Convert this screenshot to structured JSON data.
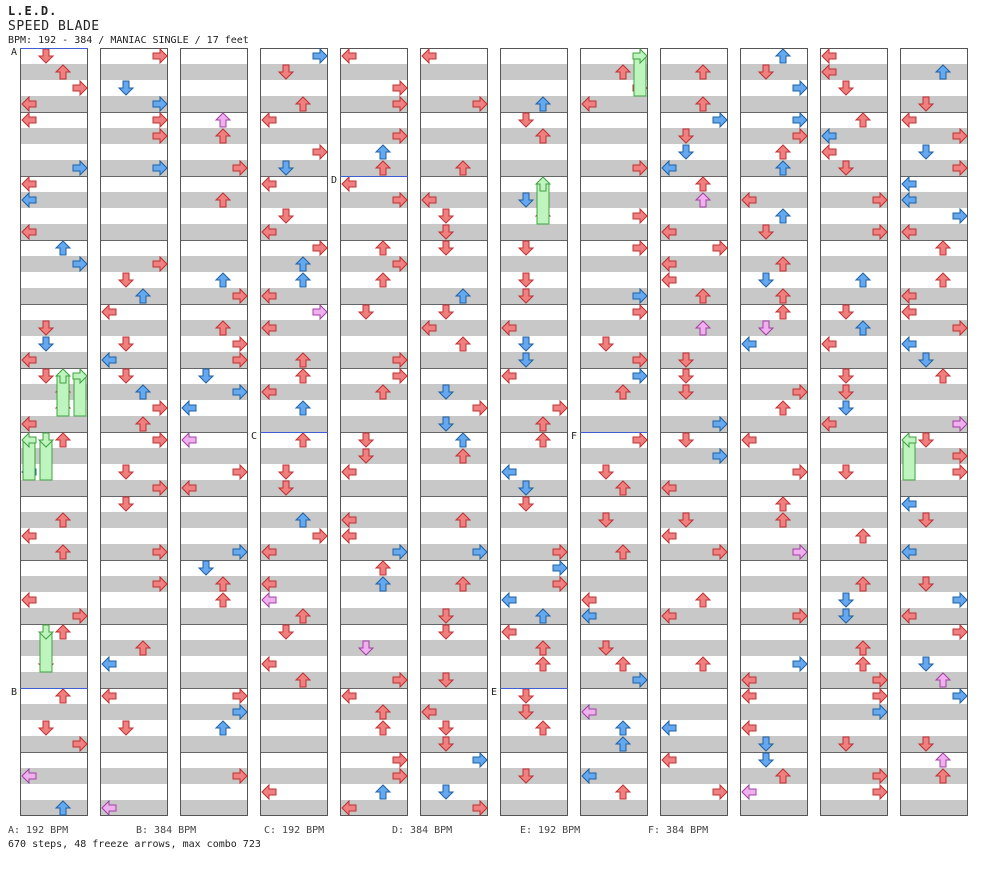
{
  "header": {
    "artist": "L.E.D.",
    "title": "SPEED BLADE",
    "info": "BPM: 192 - 384 / MANIAC SINGLE / 17 feet"
  },
  "bpm_legend": [
    "A: 192 BPM",
    "B: 384 BPM",
    "C: 192 BPM",
    "D: 384 BPM",
    "E: 192 BPM",
    "F: 384 BPM"
  ],
  "footer": {
    "stats": "670 steps, 48 freeze arrows, max combo 723"
  },
  "section_markers": [
    {
      "label": "A",
      "column": 0,
      "measure": 0
    },
    {
      "label": "B",
      "column": 0,
      "measure": 10
    },
    {
      "label": "C",
      "column": 3,
      "measure": 6
    },
    {
      "label": "D",
      "column": 4,
      "measure": 2
    },
    {
      "label": "E",
      "column": 6,
      "measure": 10
    },
    {
      "label": "F",
      "column": 7,
      "measure": 6
    }
  ],
  "colors": {
    "quarter_note": "#f08080",
    "eighth_note": "#64a8f0",
    "sixteenth_note": "#f0b0f0",
    "freeze_arrow": "#bef5be",
    "stripe": "#c8c8c8",
    "bpm_line": "#4060d0"
  },
  "notes": [
    {
      "column": 0,
      "measure": 5,
      "row": 0,
      "lanes": [
        "up",
        "right"
      ],
      "type": "freeze"
    },
    {
      "column": 0,
      "measure": 6,
      "row": 0,
      "lanes": [
        "left",
        "down"
      ],
      "type": "freeze"
    },
    {
      "column": 0,
      "measure": 8,
      "row": 1,
      "lanes": [
        "down",
        "up",
        "right"
      ],
      "type": "sixteenth"
    },
    {
      "column": 0,
      "measure": 9,
      "row": 0,
      "lanes": [
        "down"
      ],
      "type": "freeze"
    },
    {
      "column": 6,
      "measure": 2,
      "row": 0,
      "lanes": [
        "up"
      ],
      "type": "freeze"
    },
    {
      "column": 7,
      "measure": 0,
      "row": 0,
      "lanes": [
        "right"
      ],
      "type": "freeze"
    },
    {
      "column": 11,
      "measure": 6,
      "row": 0,
      "lanes": [
        "left"
      ],
      "type": "freeze"
    }
  ]
}
